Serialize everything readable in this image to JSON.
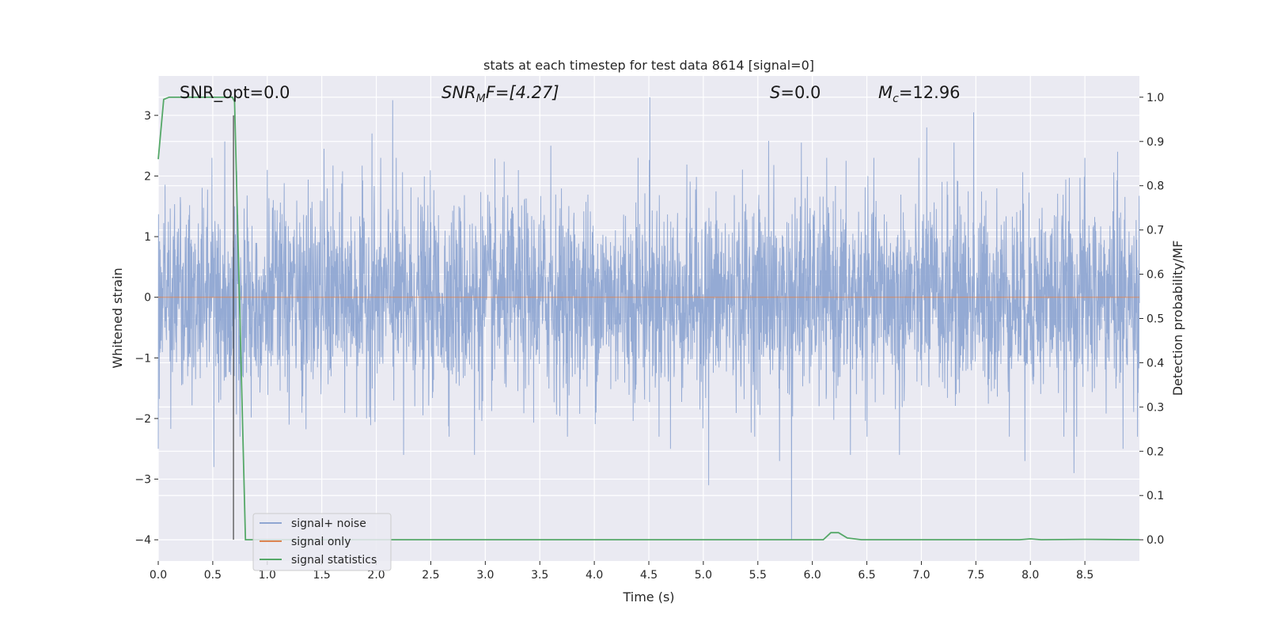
{
  "chart_data": {
    "type": "line",
    "title": "stats at each timestep for test data 8614 [signal=0]",
    "xlabel": "Time (s)",
    "ylabel_left": "Whitened strain",
    "ylabel_right": "Detection probability/MF",
    "xlim": [
      0.0,
      9.0
    ],
    "ylim_left": [
      -4.35,
      3.65
    ],
    "ylim_right": [
      -0.048,
      1.048
    ],
    "x_ticks": [
      "0.0",
      "0.5",
      "1.0",
      "1.5",
      "2.0",
      "2.5",
      "3.0",
      "3.5",
      "4.0",
      "4.5",
      "5.0",
      "5.5",
      "6.0",
      "6.5",
      "7.0",
      "7.5",
      "8.0",
      "8.5"
    ],
    "y_ticks_left": [
      "−4",
      "−3",
      "−2",
      "−1",
      "0",
      "1",
      "2",
      "3"
    ],
    "y_ticks_right": [
      "0.0",
      "0.1",
      "0.2",
      "0.3",
      "0.4",
      "0.5",
      "0.6",
      "0.7",
      "0.8",
      "0.9",
      "1.0"
    ],
    "grid": true,
    "legend_position": "lower-left",
    "annotations": {
      "snr_opt": "SNR_opt=0.0",
      "snr_mf_main": "SNR",
      "snr_mf_sub": "M",
      "snr_mf_tail": "F=[4.27]",
      "s_main": "S",
      "s_tail": "=0.0",
      "mc_main": "M",
      "mc_sub": "c",
      "mc_tail": "=12.96"
    },
    "vline_x": 0.69,
    "series": [
      {
        "name": "signal+ noise",
        "color": "#8fa6d2",
        "noise_std": 0.8,
        "spikes": [
          [
            0.0,
            2.38
          ],
          [
            0.0,
            -2.5
          ],
          [
            0.51,
            -2.8
          ],
          [
            0.61,
            2.57
          ],
          [
            0.7,
            1.5
          ],
          [
            0.75,
            -2.3
          ],
          [
            1.0,
            2.1
          ],
          [
            1.2,
            -2.1
          ],
          [
            1.52,
            2.45
          ],
          [
            1.96,
            2.7
          ],
          [
            2.15,
            3.25
          ],
          [
            2.25,
            -2.6
          ],
          [
            2.9,
            -2.6
          ],
          [
            3.6,
            2.5
          ],
          [
            4.4,
            2.3
          ],
          [
            4.51,
            3.3
          ],
          [
            4.7,
            -2.5
          ],
          [
            5.05,
            -3.1
          ],
          [
            5.6,
            2.58
          ],
          [
            5.7,
            -2.7
          ],
          [
            5.81,
            -4.0
          ],
          [
            5.9,
            2.55
          ],
          [
            6.35,
            -2.6
          ],
          [
            6.8,
            -2.6
          ],
          [
            7.05,
            2.8
          ],
          [
            7.48,
            3.05
          ],
          [
            7.3,
            2.55
          ],
          [
            7.95,
            -2.7
          ],
          [
            8.4,
            -2.9
          ],
          [
            8.5,
            2.3
          ],
          [
            8.8,
            2.4
          ],
          [
            8.85,
            -2.5
          ]
        ]
      },
      {
        "name": "signal only",
        "color": "#dd8452",
        "value": 0.0
      },
      {
        "name": "signal statistics",
        "color": "#55a868",
        "x": [
          0.0,
          0.05,
          0.1,
          0.2,
          0.4,
          0.6,
          0.68,
          0.7,
          0.8,
          0.9,
          6.1,
          6.17,
          6.24,
          6.32,
          6.45,
          6.8,
          7.9,
          8.0,
          8.1,
          8.5,
          9.0
        ],
        "y": [
          0.86,
          0.995,
          1.0,
          1.0,
          1.0,
          1.0,
          1.0,
          0.99,
          0.0,
          0.0,
          0.0,
          0.016,
          0.016,
          0.004,
          0.0,
          0.0,
          0.0,
          0.002,
          0.0,
          0.001,
          0.0
        ]
      }
    ]
  }
}
